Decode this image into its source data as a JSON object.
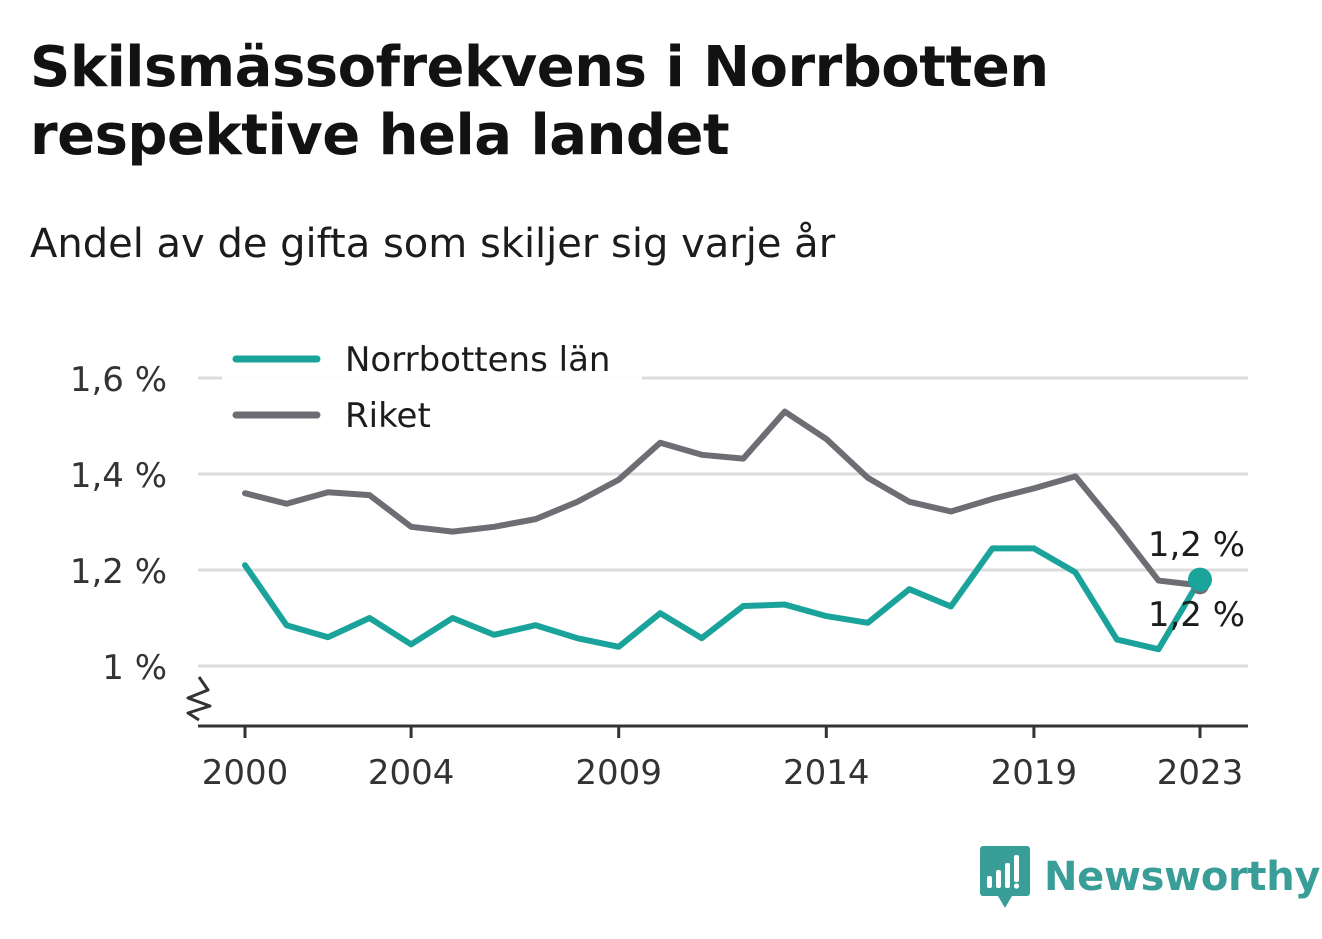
{
  "title": "Skilsmässofrekvens i Norrbotten respektive hela landet",
  "subtitle": "Andel av de gifta som skiljer sig varje år",
  "brand": {
    "name": "Newsworthy",
    "color": "#3a9e98"
  },
  "chart_data": {
    "type": "line",
    "x": [
      2000,
      2001,
      2002,
      2003,
      2004,
      2005,
      2006,
      2007,
      2008,
      2009,
      2010,
      2011,
      2012,
      2013,
      2014,
      2015,
      2016,
      2017,
      2018,
      2019,
      2020,
      2021,
      2022,
      2023
    ],
    "x_ticks": [
      2000,
      2004,
      2009,
      2014,
      2019,
      2023
    ],
    "x_tick_labels": [
      "2000",
      "2004",
      "2009",
      "2014",
      "2019",
      "2023"
    ],
    "y_ticks": [
      1.0,
      1.2,
      1.4,
      1.6
    ],
    "y_tick_labels": [
      "1 %",
      "1,2 %",
      "1,4 %",
      "1,6 %"
    ],
    "ylim": [
      0.88,
      1.6
    ],
    "y_axis_break": true,
    "grid": true,
    "legend_position": "top-left",
    "series": [
      {
        "name": "Norrbottens län",
        "color": "#1aa39a",
        "values": [
          1.21,
          1.085,
          1.06,
          1.1,
          1.045,
          1.1,
          1.065,
          1.085,
          1.058,
          1.04,
          1.11,
          1.058,
          1.125,
          1.128,
          1.104,
          1.09,
          1.16,
          1.124,
          1.245,
          1.245,
          1.195,
          1.055,
          1.035,
          1.18
        ],
        "end_label": "1,2 %"
      },
      {
        "name": "Riket",
        "color": "#6e6d73",
        "values": [
          1.36,
          1.338,
          1.362,
          1.356,
          1.29,
          1.28,
          1.29,
          1.306,
          1.342,
          1.388,
          1.465,
          1.44,
          1.432,
          1.53,
          1.473,
          1.392,
          1.342,
          1.322,
          1.348,
          1.37,
          1.395,
          1.29,
          1.178,
          1.168
        ],
        "end_label": "1,2 %"
      }
    ]
  }
}
